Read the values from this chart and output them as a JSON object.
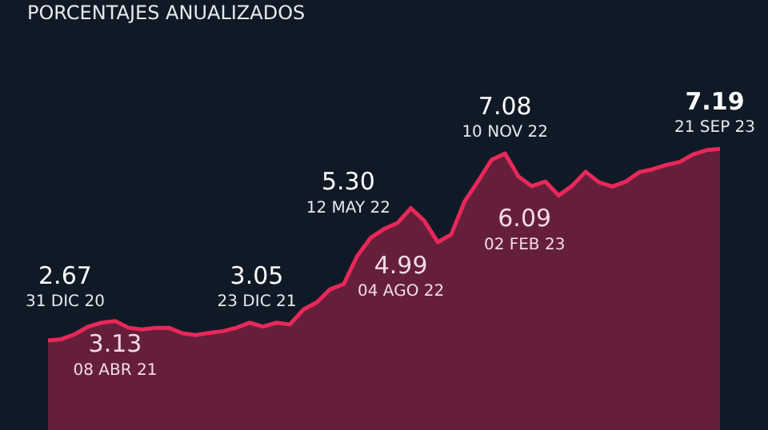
{
  "chart_data": {
    "type": "area",
    "title": "PORCENTAJES ANUALIZADOS",
    "categories": [
      null,
      null,
      null,
      null,
      null,
      null,
      null,
      null,
      null,
      null,
      null,
      null,
      null,
      null,
      null,
      null,
      null,
      null,
      null,
      null,
      null,
      null,
      null,
      null,
      null,
      null,
      null,
      null,
      null,
      null,
      null,
      null,
      null,
      null,
      null,
      null,
      null,
      null,
      null,
      null,
      null,
      null,
      null,
      null,
      null,
      null,
      null,
      null,
      null,
      null,
      null
    ],
    "series": [
      {
        "color": "#e8285a",
        "values": [
          2.67,
          2.7,
          2.82,
          3.0,
          3.09,
          3.13,
          2.97,
          2.93,
          2.97,
          2.97,
          2.84,
          2.8,
          2.85,
          2.89,
          2.97,
          3.09,
          3.0,
          3.09,
          3.05,
          3.4,
          3.57,
          3.88,
          4.0,
          4.66,
          5.09,
          5.3,
          5.44,
          5.79,
          5.49,
          4.99,
          5.17,
          5.95,
          6.43,
          6.93,
          7.08,
          6.54,
          6.31,
          6.42,
          6.09,
          6.32,
          6.65,
          6.4,
          6.3,
          6.42,
          6.64,
          6.71,
          6.81,
          6.88,
          7.06,
          7.16,
          7.19
        ],
        "value_labels": [
          "2.67",
          null,
          null,
          null,
          null,
          "3.13",
          null,
          null,
          null,
          null,
          null,
          null,
          null,
          null,
          null,
          null,
          null,
          null,
          "3.05",
          null,
          null,
          null,
          null,
          null,
          null,
          "5.30",
          null,
          null,
          null,
          "4.99",
          null,
          null,
          null,
          null,
          "7.08",
          null,
          null,
          null,
          "6.09",
          null,
          null,
          null,
          null,
          null,
          null,
          null,
          null,
          null,
          null,
          null,
          "7.19"
        ]
      }
    ],
    "ylim": [
      0.56,
      10.7
    ],
    "marker": "none",
    "annotations": [
      "31 DIC 20",
      "08 ABR 21",
      "23 DIC 21",
      "12 MAY 22",
      "04 AGO 22",
      "10 NOV 22",
      "02 FEB 23",
      "21 SEP 23"
    ]
  }
}
